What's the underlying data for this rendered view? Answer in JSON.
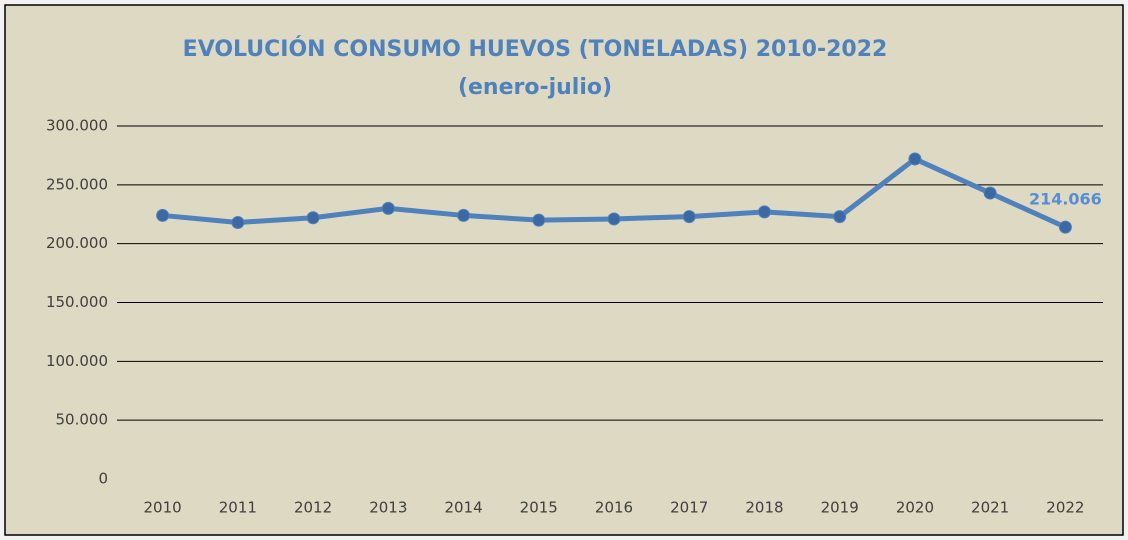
{
  "chart_data": {
    "type": "line",
    "title": "EVOLUCIÓN CONSUMO HUEVOS (TONELADAS)  2010-2022",
    "subtitle": "(enero-julio)",
    "categories": [
      "2010",
      "2011",
      "2012",
      "2013",
      "2014",
      "2015",
      "2016",
      "2017",
      "2018",
      "2019",
      "2020",
      "2021",
      "2022"
    ],
    "values": [
      224000,
      218000,
      222000,
      230000,
      224000,
      220000,
      221000,
      223000,
      227000,
      223000,
      272000,
      243000,
      214066
    ],
    "value_labels": [
      null,
      null,
      null,
      null,
      null,
      null,
      null,
      null,
      null,
      null,
      null,
      null,
      "214.066"
    ],
    "color": "#4f81bd",
    "marker_color": "#3c69a3",
    "label_color": "#558ed5",
    "ylim": [
      0,
      300000
    ],
    "yticks": [
      0,
      {
        "value": 50000,
        "label": "50.000"
      },
      {
        "value": 100000,
        "label": "100.000"
      },
      {
        "value": 150000,
        "label": "150.000"
      },
      {
        "value": 200000,
        "label": "200.000"
      },
      {
        "value": 250000,
        "label": "250.000"
      },
      {
        "value": 300000,
        "label": "300.000"
      }
    ],
    "grid": true
  }
}
